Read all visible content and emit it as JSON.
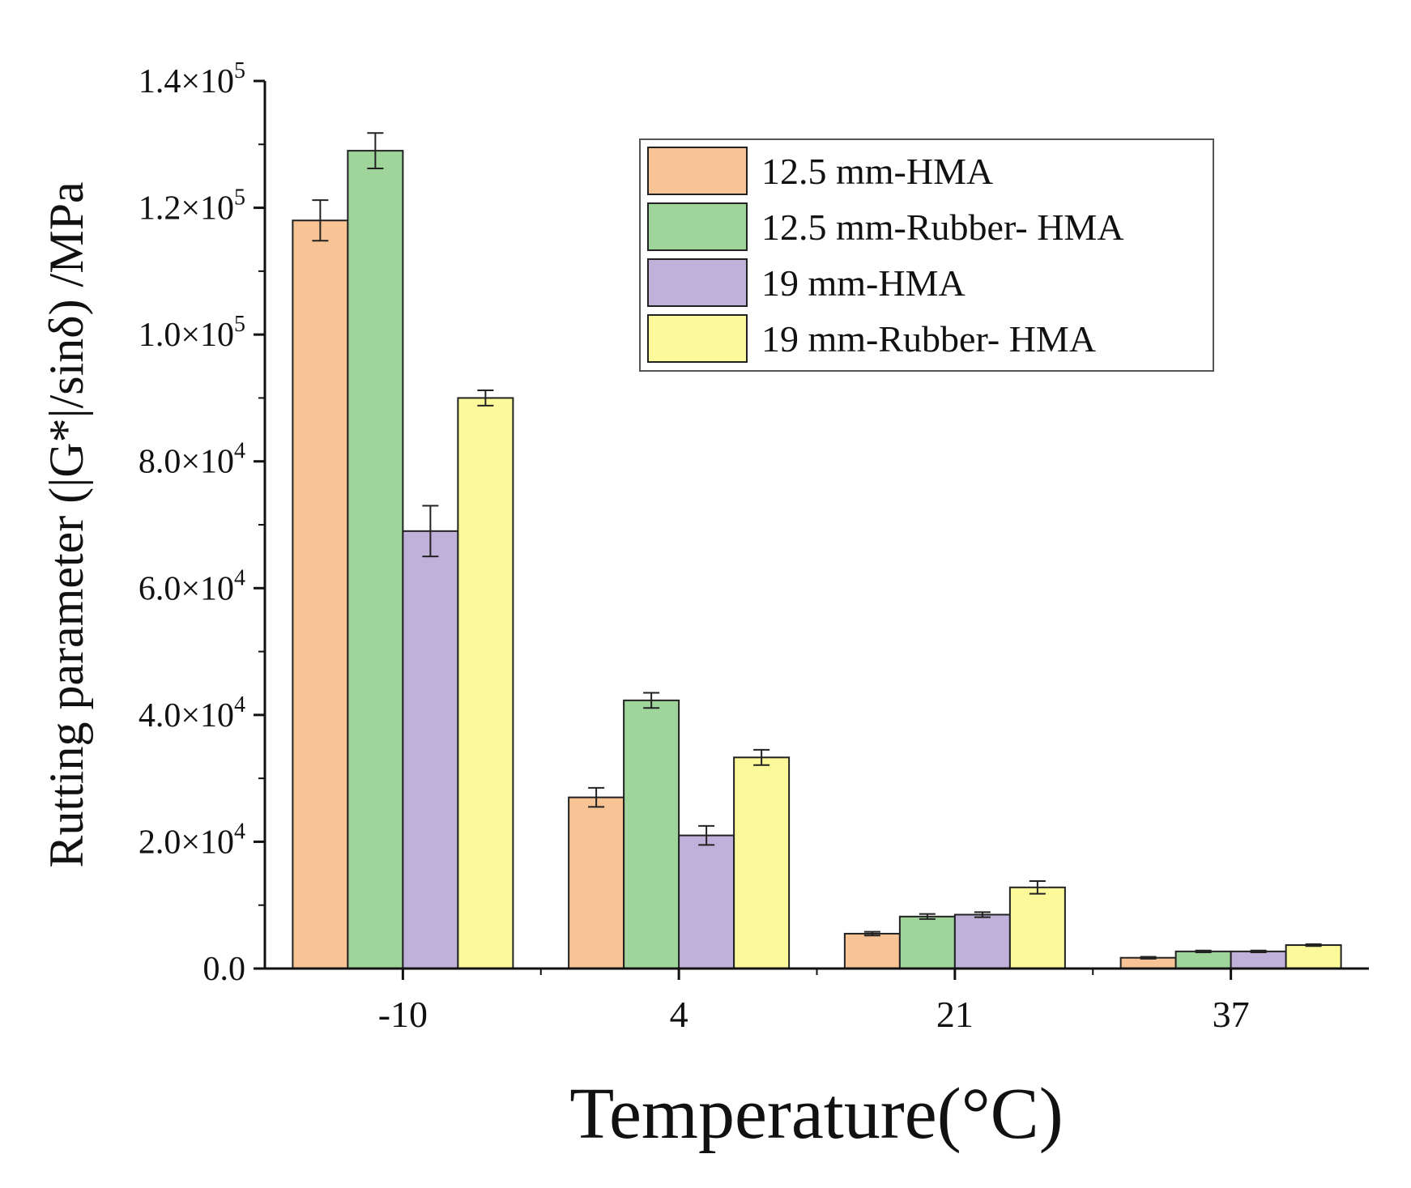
{
  "chart_data": {
    "type": "bar",
    "title": "",
    "xlabel": "Temperature(°C)",
    "ylabel": "Rutting parameter (|G*|/sinδ) /MPa",
    "categories": [
      "-10",
      "4",
      "21",
      "37"
    ],
    "ylim": [
      0,
      140000
    ],
    "yticks": [
      {
        "value": 0,
        "label": "0.0"
      },
      {
        "value": 20000,
        "mantissa": "2.0",
        "exp": "4"
      },
      {
        "value": 40000,
        "mantissa": "4.0",
        "exp": "4"
      },
      {
        "value": 60000,
        "mantissa": "6.0",
        "exp": "4"
      },
      {
        "value": 80000,
        "mantissa": "8.0",
        "exp": "4"
      },
      {
        "value": 100000,
        "mantissa": "1.0",
        "exp": "5"
      },
      {
        "value": 120000,
        "mantissa": "1.2",
        "exp": "5"
      },
      {
        "value": 140000,
        "mantissa": "1.4",
        "exp": "5"
      }
    ],
    "times_symbol": "×10",
    "series": [
      {
        "name": "12.5 mm-HMA",
        "color": "#f9c495",
        "values": [
          118000,
          27000,
          5500,
          1700
        ],
        "errors": [
          3200,
          1500,
          300,
          150
        ]
      },
      {
        "name": "12.5 mm-Rubber- HMA",
        "color": "#9fd59b",
        "values": [
          129000,
          42300,
          8200,
          2700
        ],
        "errors": [
          2800,
          1200,
          400,
          150
        ]
      },
      {
        "name": "19 mm-HMA",
        "color": "#c0b1da",
        "values": [
          69000,
          21000,
          8500,
          2700
        ],
        "errors": [
          4000,
          1500,
          400,
          150
        ]
      },
      {
        "name": "19 mm-Rubber- HMA",
        "color": "#fbf99a",
        "values": [
          90000,
          33300,
          12800,
          3700
        ],
        "errors": [
          1200,
          1200,
          1000,
          150
        ]
      }
    ],
    "legend_position": "top-right",
    "grid": false
  }
}
